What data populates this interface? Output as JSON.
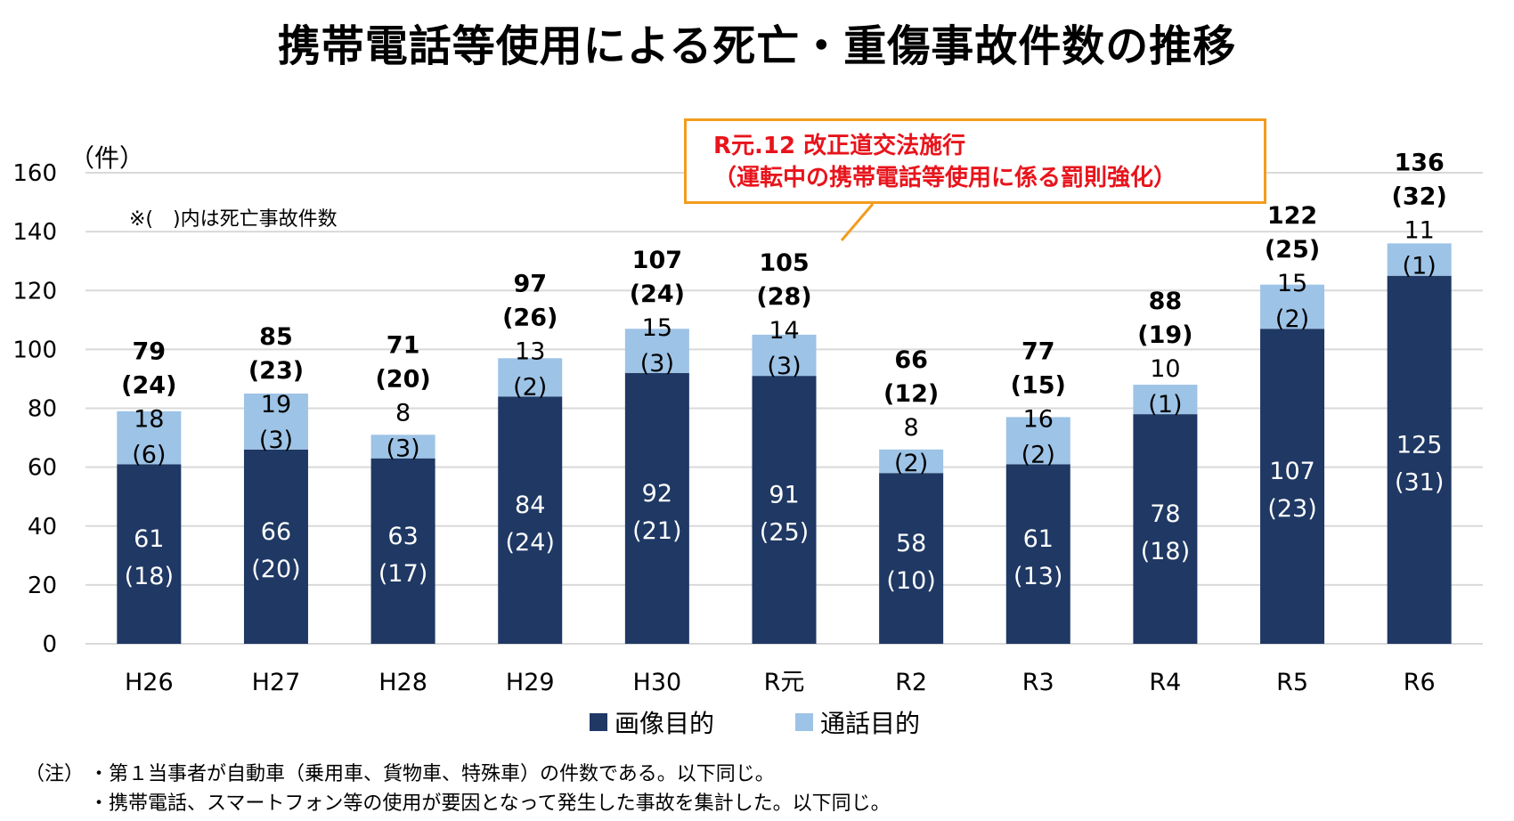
{
  "title": "携帯電話等使用による死亡・重傷事故件数の推移",
  "unit_label": "（件）",
  "paren_note": "※(　)内は死亡事故件数",
  "callout": {
    "line1": "R元.12  改正道交法施行",
    "line2": "（運転中の携帯電話等使用に係る罰則強化）"
  },
  "legend": {
    "image": "画像目的",
    "call": "通話目的"
  },
  "footnotes": {
    "prefix": "（注）",
    "line1": "・第１当事者が自動車（乗用車、貨物車、特殊車）の件数である。以下同じ。",
    "line2": "・携帯電話、スマートフォン等の使用が要因となって発生した事故を集計した。以下同じ。"
  },
  "colors": {
    "image": "#1f3864",
    "call": "#9dc3e6",
    "grid": "#d9d9d9",
    "callout_border": "#f39c1e",
    "callout_text": "#e8141c"
  },
  "chart_data": {
    "type": "bar",
    "stacked": true,
    "title": "携帯電話等使用による死亡・重傷事故件数の推移",
    "ylabel": "（件）",
    "ylim": [
      0,
      160
    ],
    "yticks": [
      0,
      20,
      40,
      60,
      80,
      100,
      120,
      140,
      160
    ],
    "categories": [
      "H26",
      "H27",
      "H28",
      "H29",
      "H30",
      "R元",
      "R2",
      "R3",
      "R4",
      "R5",
      "R6"
    ],
    "series": [
      {
        "name": "画像目的",
        "values": [
          61,
          66,
          63,
          84,
          92,
          91,
          58,
          61,
          78,
          107,
          125
        ],
        "fatal": [
          18,
          20,
          17,
          24,
          21,
          25,
          10,
          13,
          18,
          23,
          31
        ]
      },
      {
        "name": "通話目的",
        "values": [
          18,
          19,
          8,
          13,
          15,
          14,
          8,
          16,
          10,
          15,
          11
        ],
        "fatal": [
          6,
          3,
          3,
          2,
          3,
          3,
          2,
          2,
          1,
          2,
          1
        ]
      }
    ],
    "totals": [
      79,
      85,
      71,
      97,
      107,
      105,
      66,
      77,
      88,
      122,
      136
    ],
    "total_fatal": [
      24,
      23,
      20,
      26,
      24,
      28,
      12,
      15,
      19,
      25,
      32
    ],
    "legend_position": "bottom"
  }
}
